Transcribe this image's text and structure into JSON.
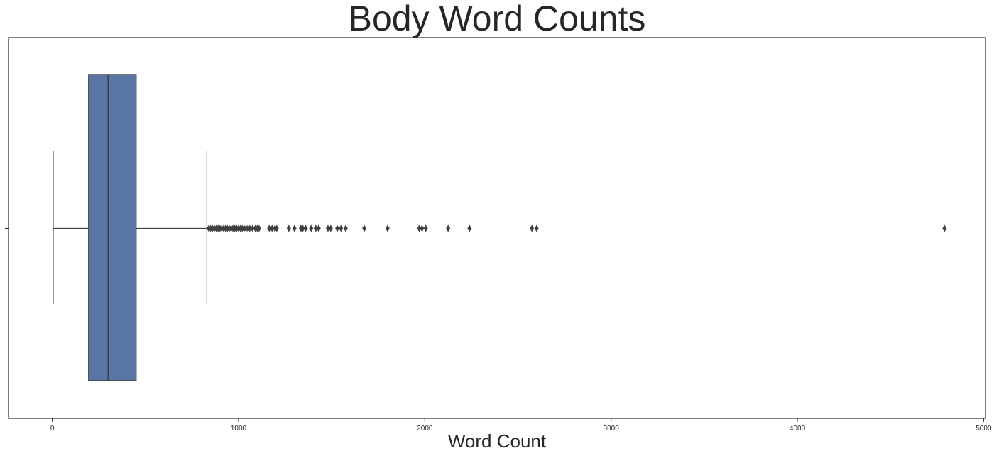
{
  "chart_data": {
    "type": "box",
    "orientation": "horizontal",
    "title": "Body Word Counts",
    "xlabel": "Word Count",
    "ylabel": "",
    "xlim": [
      -235,
      5010
    ],
    "xticks": [
      0,
      1000,
      2000,
      3000,
      4000,
      5000
    ],
    "xtick_labels": [
      "0",
      "1000",
      "2000",
      "3000",
      "4000",
      "5000"
    ],
    "grid": false,
    "legend": "none",
    "box": {
      "whisker_low": 5,
      "q1": 195,
      "median": 300,
      "q3": 450,
      "whisker_high": 830
    },
    "outliers": [
      840,
      850,
      860,
      870,
      880,
      890,
      900,
      910,
      920,
      930,
      940,
      950,
      960,
      970,
      980,
      990,
      1000,
      1010,
      1020,
      1030,
      1040,
      1050,
      1060,
      1075,
      1090,
      1100,
      1110,
      1165,
      1180,
      1195,
      1205,
      1270,
      1300,
      1335,
      1345,
      1360,
      1390,
      1415,
      1430,
      1480,
      1495,
      1530,
      1550,
      1575,
      1675,
      1800,
      1970,
      1985,
      2005,
      2125,
      2240,
      2575,
      2600,
      4790
    ],
    "colors": {
      "box_fill": "#5975a4",
      "line": "#3f3f3f",
      "axes": "#262626"
    }
  }
}
